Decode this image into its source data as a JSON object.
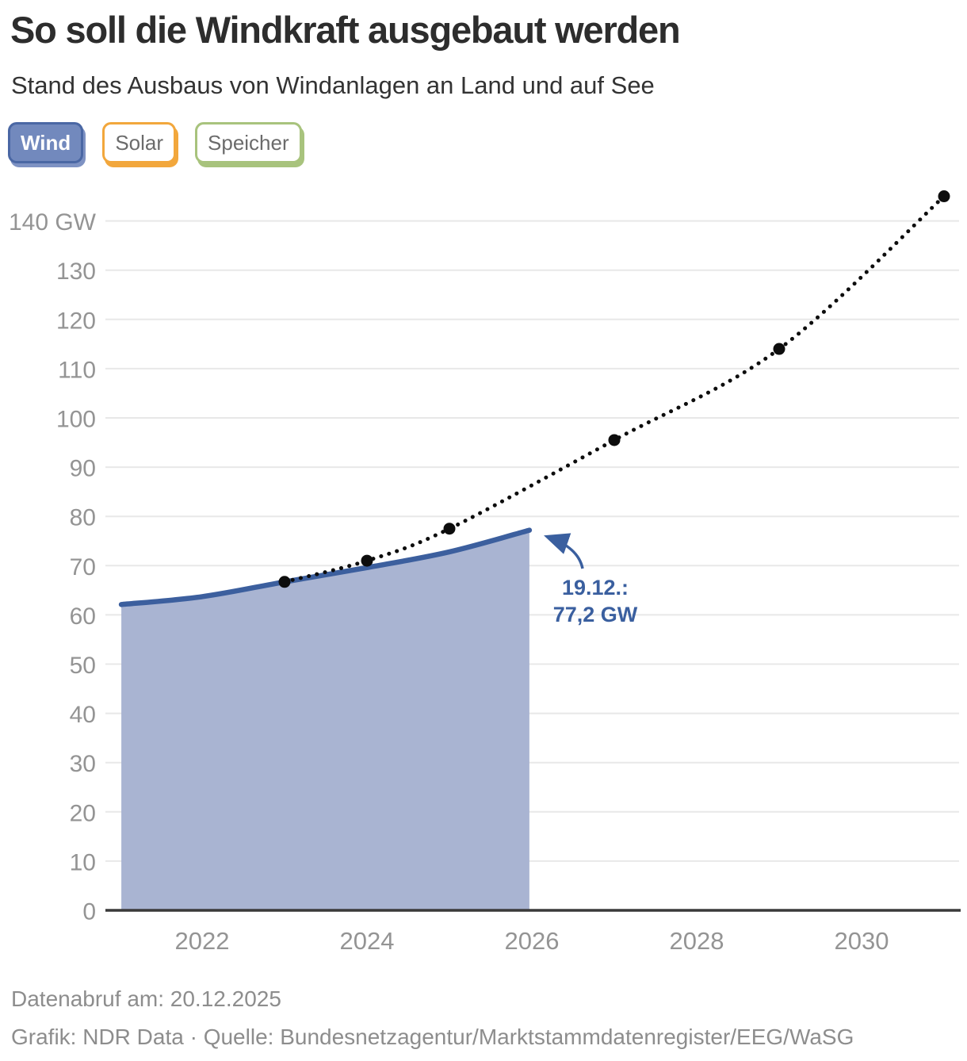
{
  "header": {
    "title": "So soll die Windkraft ausgebaut werden",
    "subtitle": "Stand des Ausbaus von Windanlagen an Land und auf See"
  },
  "tabs": [
    {
      "label": "Wind",
      "active": true,
      "fill": "#7289bd",
      "border": "#4a67a4",
      "text_color": "#ffffff",
      "shadow": "#7e92c3"
    },
    {
      "label": "Solar",
      "active": false,
      "fill": "#ffffff",
      "border": "#f2a73c",
      "text_color": "#6b6b6b",
      "shadow": "#f2a73c"
    },
    {
      "label": "Speicher",
      "active": false,
      "fill": "#ffffff",
      "border": "#a8c37d",
      "text_color": "#6b6b6b",
      "shadow": "#a8c37d"
    }
  ],
  "chart_data": {
    "type": "area",
    "unit": "GW",
    "x_axis": {
      "ticks": [
        2022,
        2024,
        2026,
        2028,
        2030
      ],
      "range_years": [
        2021.0,
        2031.4
      ],
      "grid": false
    },
    "y_axis": {
      "tick_values": [
        0,
        10,
        20,
        30,
        40,
        50,
        60,
        70,
        80,
        90,
        100,
        110,
        120,
        130,
        140
      ],
      "top_tick_label": "140 GW",
      "range": [
        0,
        148
      ],
      "grid": true
    },
    "series": [
      {
        "key": "actual_wind_capacity",
        "type": "area",
        "x": [
          2021.02,
          2022,
          2023,
          2024,
          2025,
          2025.97
        ],
        "y": [
          62.1,
          63.7,
          66.7,
          69.6,
          72.8,
          77.2
        ],
        "fill_color": "#a9b4d2",
        "line_color": "#3c5f9e"
      },
      {
        "key": "expansion_targets",
        "type": "dotted-line",
        "x": [
          2023,
          2024,
          2025,
          2027,
          2029,
          2031
        ],
        "y": [
          66.7,
          71,
          77.5,
          95.5,
          114,
          145
        ],
        "color": "#0d0d0d"
      }
    ],
    "annotation": {
      "line1": "19.12.:",
      "line2": "77,2 GW",
      "color": "#3a5f9f"
    },
    "colors": {
      "gridline": "#e8e8e8",
      "axis_line": "#3a3a3a",
      "tick_label": "#949494"
    }
  },
  "footer": {
    "line1": "Datenabruf am: 20.12.2025",
    "line2": "Grafik: NDR Data · Quelle: Bundesnetzagentur/Marktstammdatenregister/EEG/WaSG"
  }
}
